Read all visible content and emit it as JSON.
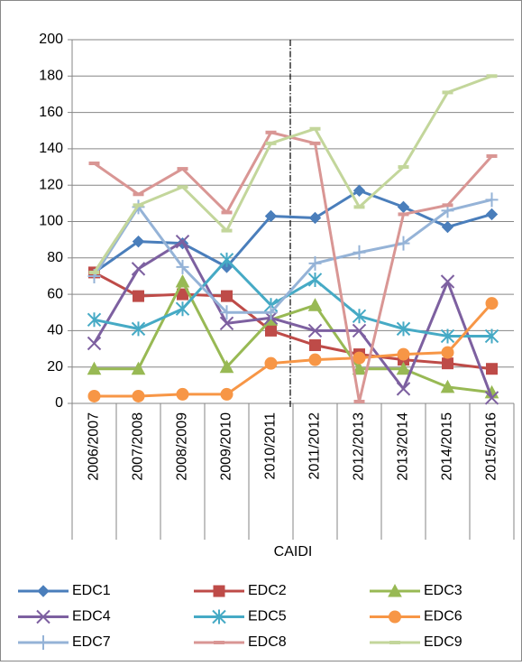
{
  "chart_data": {
    "type": "line",
    "x_label": "CAIDI",
    "categories": [
      "2006/2007",
      "2007/2008",
      "2008/2009",
      "2009/2010",
      "2010/2011",
      "2011/2012",
      "2012/2013",
      "2013/2014",
      "2014/2015",
      "2015/2016"
    ],
    "ylim": [
      0,
      200
    ],
    "yticks": [
      0,
      20,
      40,
      60,
      80,
      100,
      120,
      140,
      160,
      180,
      200
    ],
    "grid": true,
    "series": [
      {
        "name": "EDC1",
        "color": "#4a7ebb",
        "marker": "diamond",
        "values": [
          72,
          89,
          88,
          75,
          103,
          102,
          117,
          108,
          97,
          104
        ]
      },
      {
        "name": "EDC2",
        "color": "#be4b48",
        "marker": "square",
        "values": [
          72,
          59,
          60,
          59,
          40,
          32,
          27,
          24,
          22,
          19
        ]
      },
      {
        "name": "EDC3",
        "color": "#98b954",
        "marker": "triangle",
        "values": [
          19,
          19,
          67,
          20,
          46,
          54,
          19,
          19,
          9,
          6
        ]
      },
      {
        "name": "EDC4",
        "color": "#7d60a0",
        "marker": "x",
        "values": [
          33,
          74,
          89,
          44,
          47,
          40,
          40,
          8,
          67,
          3
        ]
      },
      {
        "name": "EDC5",
        "color": "#46aac5",
        "marker": "star",
        "values": [
          46,
          41,
          52,
          79,
          54,
          68,
          48,
          41,
          37,
          37
        ]
      },
      {
        "name": "EDC6",
        "color": "#f79646",
        "marker": "circle",
        "values": [
          4,
          4,
          5,
          5,
          22,
          24,
          25,
          27,
          28,
          55
        ]
      },
      {
        "name": "EDC7",
        "color": "#95b3d7",
        "marker": "plus",
        "values": [
          70,
          108,
          75,
          50,
          50,
          77,
          83,
          88,
          106,
          112
        ]
      },
      {
        "name": "EDC8",
        "color": "#d99694",
        "marker": "dash",
        "values": [
          132,
          115,
          129,
          105,
          149,
          143,
          1,
          104,
          109,
          136
        ]
      },
      {
        "name": "EDC9",
        "color": "#c3d69b",
        "marker": "dash",
        "values": [
          72,
          109,
          119,
          95,
          143,
          151,
          108,
          130,
          171,
          180
        ]
      }
    ]
  }
}
